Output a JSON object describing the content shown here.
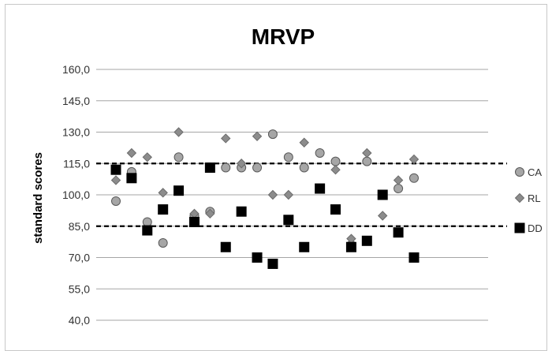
{
  "chart_data": {
    "type": "scatter",
    "title": "MRVP",
    "ylabel": "standard scores",
    "xlabel": "",
    "ylim": [
      40,
      160
    ],
    "y_ticks": [
      "40,0",
      "55,0",
      "70,0",
      "85,0",
      "100,0",
      "115,0",
      "130,0",
      "145,0",
      "160,0"
    ],
    "y_tick_values": [
      40,
      55,
      70,
      85,
      100,
      115,
      130,
      145,
      160
    ],
    "grid": "horizontal",
    "legend_position": "right",
    "reference_lines": [
      115,
      85
    ],
    "series": [
      {
        "name": "CA",
        "marker": "circle",
        "color": "#a6a6a6",
        "points": [
          [
            1,
            97
          ],
          [
            2,
            111
          ],
          [
            3,
            87
          ],
          [
            4,
            77
          ],
          [
            5,
            118
          ],
          [
            6,
            90
          ],
          [
            7,
            92
          ],
          [
            8,
            113
          ],
          [
            9,
            113
          ],
          [
            10,
            113
          ],
          [
            11,
            129
          ],
          [
            12,
            118
          ],
          [
            13,
            113
          ],
          [
            14,
            120
          ],
          [
            15,
            116
          ],
          [
            16,
            76
          ],
          [
            17,
            116
          ],
          [
            18,
            100
          ],
          [
            19,
            103
          ],
          [
            20,
            108
          ]
        ]
      },
      {
        "name": "RL",
        "marker": "diamond",
        "color": "#8c8c8c",
        "points": [
          [
            1,
            107
          ],
          [
            2,
            120
          ],
          [
            3,
            118
          ],
          [
            4,
            101
          ],
          [
            5,
            130
          ],
          [
            6,
            91
          ],
          [
            7,
            91
          ],
          [
            8,
            127
          ],
          [
            9,
            115
          ],
          [
            10,
            128
          ],
          [
            11,
            100
          ],
          [
            12,
            100
          ],
          [
            13,
            125
          ],
          [
            14,
            103
          ],
          [
            15,
            112
          ],
          [
            16,
            79
          ],
          [
            17,
            120
          ],
          [
            18,
            90
          ],
          [
            19,
            107
          ],
          [
            20,
            117
          ]
        ]
      },
      {
        "name": "DD",
        "marker": "square",
        "color": "#000000",
        "points": [
          [
            1,
            112
          ],
          [
            2,
            108
          ],
          [
            3,
            83
          ],
          [
            4,
            93
          ],
          [
            5,
            102
          ],
          [
            6,
            87
          ],
          [
            7,
            113
          ],
          [
            8,
            75
          ],
          [
            9,
            92
          ],
          [
            10,
            70
          ],
          [
            11,
            67
          ],
          [
            12,
            88
          ],
          [
            13,
            75
          ],
          [
            14,
            103
          ],
          [
            15,
            93
          ],
          [
            16,
            75
          ],
          [
            17,
            78
          ],
          [
            18,
            100
          ],
          [
            19,
            82
          ],
          [
            20,
            70
          ]
        ]
      }
    ]
  }
}
